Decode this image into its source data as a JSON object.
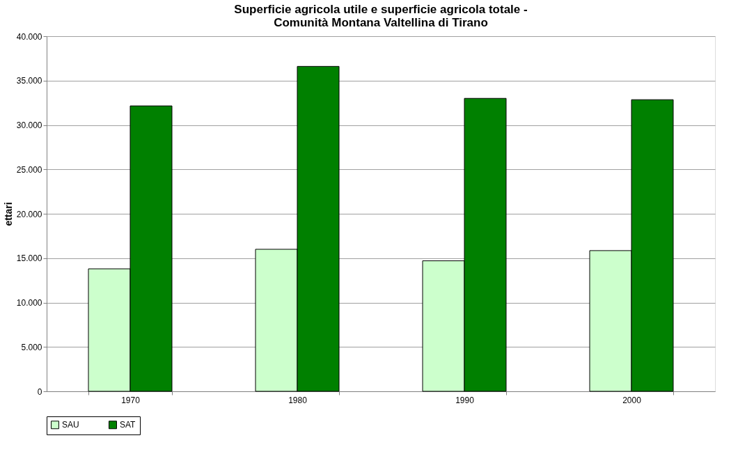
{
  "chart_data": {
    "type": "bar",
    "title": "Superficie agricola utile e superficie agricola totale -\nComunità Montana Valtellina di Tirano",
    "ylabel": "ettari",
    "categories": [
      "1970",
      "1980",
      "1990",
      "2000"
    ],
    "series": [
      {
        "name": "SAU",
        "color": "#ccffcc",
        "values": [
          13800,
          16000,
          14700,
          15850
        ]
      },
      {
        "name": "SAT",
        "color": "#008000",
        "values": [
          32150,
          36600,
          33000,
          32850
        ]
      }
    ],
    "ylim": [
      0,
      40000
    ],
    "yticks": [
      {
        "value": 0,
        "label": "0"
      },
      {
        "value": 5000,
        "label": "5.000"
      },
      {
        "value": 10000,
        "label": "10.000"
      },
      {
        "value": 15000,
        "label": "15.000"
      },
      {
        "value": 20000,
        "label": "20.000"
      },
      {
        "value": 25000,
        "label": "25.000"
      },
      {
        "value": 30000,
        "label": "30.000"
      },
      {
        "value": 35000,
        "label": "35.000"
      },
      {
        "value": 40000,
        "label": "40.000"
      }
    ],
    "grid": "y",
    "legend": "bottom"
  }
}
